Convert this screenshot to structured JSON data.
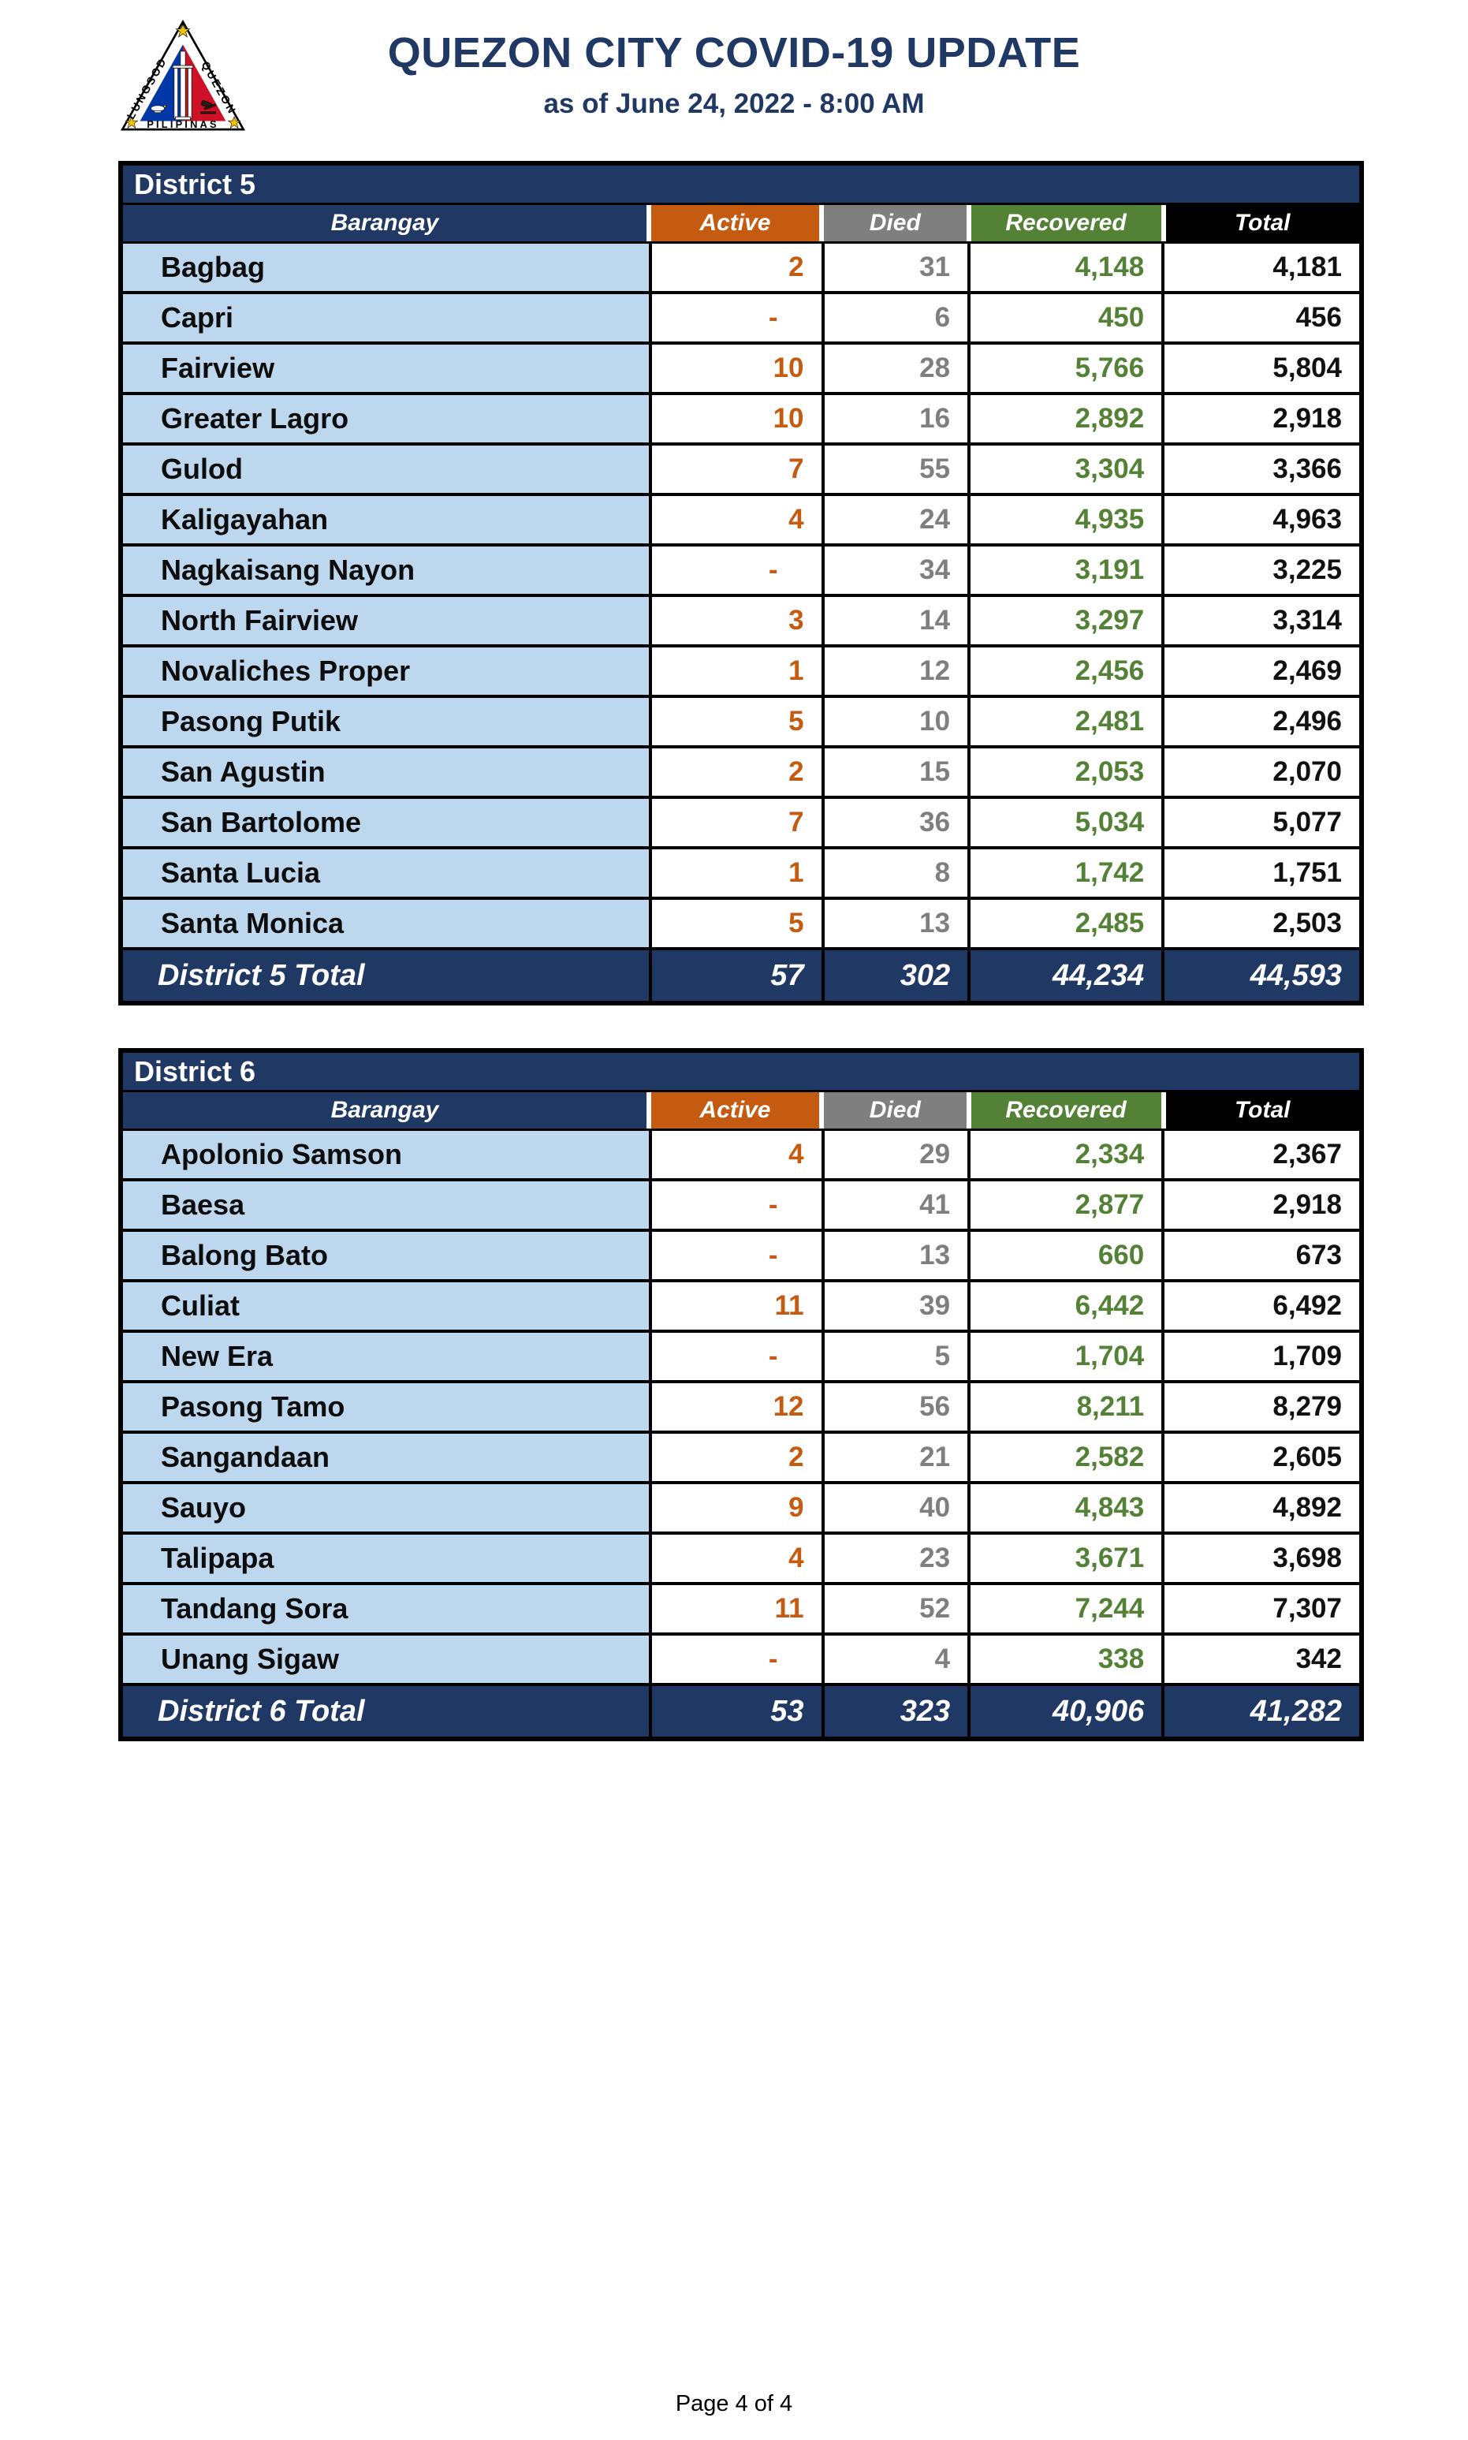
{
  "header": {
    "title": "QUEZON CITY COVID-19 UPDATE",
    "subtitle": "as of June 24, 2022 - 8:00 AM",
    "logo": {
      "icon": "quezon-city-seal",
      "left_text": "LUNGSOD",
      "right_text": "QUEZON",
      "bottom_text": "PILIPINAS"
    }
  },
  "columns": [
    "Barangay",
    "Active",
    "Died",
    "Recovered",
    "Total"
  ],
  "colors": {
    "navy": "#1F3864",
    "active_orange": "#C55A11",
    "died_gray": "#7F7F7F",
    "recovered_green": "#538135",
    "total_black": "#000000",
    "row_light_blue": "#BDD7EE",
    "seal_blue": "#0038A8",
    "seal_red": "#CE1126",
    "star_yellow": "#F4C400"
  },
  "tables": [
    {
      "district": "District 5",
      "total_label": "District 5 Total",
      "rows": [
        {
          "barangay": "Bagbag",
          "active": "2",
          "died": "31",
          "recovered": "4,148",
          "total": "4,181"
        },
        {
          "barangay": "Capri",
          "active": "-",
          "died": "6",
          "recovered": "450",
          "total": "456"
        },
        {
          "barangay": "Fairview",
          "active": "10",
          "died": "28",
          "recovered": "5,766",
          "total": "5,804"
        },
        {
          "barangay": "Greater Lagro",
          "active": "10",
          "died": "16",
          "recovered": "2,892",
          "total": "2,918"
        },
        {
          "barangay": "Gulod",
          "active": "7",
          "died": "55",
          "recovered": "3,304",
          "total": "3,366"
        },
        {
          "barangay": "Kaligayahan",
          "active": "4",
          "died": "24",
          "recovered": "4,935",
          "total": "4,963"
        },
        {
          "barangay": "Nagkaisang Nayon",
          "active": "-",
          "died": "34",
          "recovered": "3,191",
          "total": "3,225"
        },
        {
          "barangay": "North Fairview",
          "active": "3",
          "died": "14",
          "recovered": "3,297",
          "total": "3,314"
        },
        {
          "barangay": "Novaliches Proper",
          "active": "1",
          "died": "12",
          "recovered": "2,456",
          "total": "2,469"
        },
        {
          "barangay": "Pasong Putik",
          "active": "5",
          "died": "10",
          "recovered": "2,481",
          "total": "2,496"
        },
        {
          "barangay": "San Agustin",
          "active": "2",
          "died": "15",
          "recovered": "2,053",
          "total": "2,070"
        },
        {
          "barangay": "San Bartolome",
          "active": "7",
          "died": "36",
          "recovered": "5,034",
          "total": "5,077"
        },
        {
          "barangay": "Santa Lucia",
          "active": "1",
          "died": "8",
          "recovered": "1,742",
          "total": "1,751"
        },
        {
          "barangay": "Santa Monica",
          "active": "5",
          "died": "13",
          "recovered": "2,485",
          "total": "2,503"
        }
      ],
      "totals": {
        "active": "57",
        "died": "302",
        "recovered": "44,234",
        "total": "44,593"
      }
    },
    {
      "district": "District 6",
      "total_label": "District 6 Total",
      "rows": [
        {
          "barangay": "Apolonio Samson",
          "active": "4",
          "died": "29",
          "recovered": "2,334",
          "total": "2,367"
        },
        {
          "barangay": "Baesa",
          "active": "-",
          "died": "41",
          "recovered": "2,877",
          "total": "2,918"
        },
        {
          "barangay": "Balong Bato",
          "active": "-",
          "died": "13",
          "recovered": "660",
          "total": "673"
        },
        {
          "barangay": "Culiat",
          "active": "11",
          "died": "39",
          "recovered": "6,442",
          "total": "6,492"
        },
        {
          "barangay": "New Era",
          "active": "-",
          "died": "5",
          "recovered": "1,704",
          "total": "1,709"
        },
        {
          "barangay": "Pasong Tamo",
          "active": "12",
          "died": "56",
          "recovered": "8,211",
          "total": "8,279"
        },
        {
          "barangay": "Sangandaan",
          "active": "2",
          "died": "21",
          "recovered": "2,582",
          "total": "2,605"
        },
        {
          "barangay": "Sauyo",
          "active": "9",
          "died": "40",
          "recovered": "4,843",
          "total": "4,892"
        },
        {
          "barangay": "Talipapa",
          "active": "4",
          "died": "23",
          "recovered": "3,671",
          "total": "3,698"
        },
        {
          "barangay": "Tandang Sora",
          "active": "11",
          "died": "52",
          "recovered": "7,244",
          "total": "7,307"
        },
        {
          "barangay": "Unang Sigaw",
          "active": "-",
          "died": "4",
          "recovered": "338",
          "total": "342"
        }
      ],
      "totals": {
        "active": "53",
        "died": "323",
        "recovered": "40,906",
        "total": "41,282"
      }
    }
  ],
  "footer": {
    "page_label": "Page 4 of 4"
  }
}
